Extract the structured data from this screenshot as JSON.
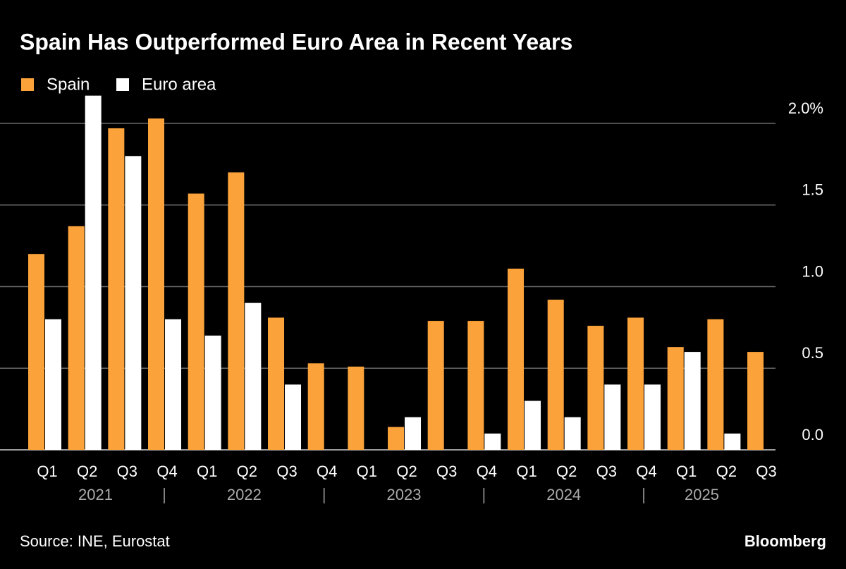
{
  "chart_data": {
    "type": "bar",
    "title": "Spain Has Outperformed Euro Area in Recent Years",
    "categories": [
      "Q1",
      "Q2",
      "Q3",
      "Q4",
      "Q1",
      "Q2",
      "Q3",
      "Q4",
      "Q1",
      "Q2",
      "Q3",
      "Q4",
      "Q1",
      "Q2",
      "Q3",
      "Q4",
      "Q1",
      "Q2",
      "Q3"
    ],
    "x_groups": [
      "2021",
      "2022",
      "2023",
      "2024",
      "2025"
    ],
    "series": [
      {
        "name": "Spain",
        "color": "#fba33a",
        "values": [
          1.2,
          1.37,
          1.97,
          2.03,
          1.57,
          1.7,
          0.81,
          0.53,
          0.51,
          0.14,
          0.79,
          0.79,
          1.11,
          0.92,
          0.76,
          0.81,
          0.63,
          0.8,
          0.6
        ]
      },
      {
        "name": "Euro area",
        "color": "#ffffff",
        "values": [
          0.8,
          2.17,
          1.8,
          0.8,
          0.7,
          0.9,
          0.4,
          0,
          0,
          0.2,
          0,
          0.1,
          0.3,
          0.2,
          0.4,
          0.4,
          0.6,
          0.1,
          null
        ]
      }
    ],
    "ylim": [
      0,
      2.2
    ],
    "yticks": [
      {
        "value": 0,
        "label": "0.0"
      },
      0.5,
      {
        "value": 1,
        "label": "1.0"
      },
      1.5,
      {
        "value": 2,
        "label": "2.0%"
      }
    ],
    "grid": true,
    "source": "Source: INE, Eurostat",
    "brand": "Bloomberg"
  }
}
